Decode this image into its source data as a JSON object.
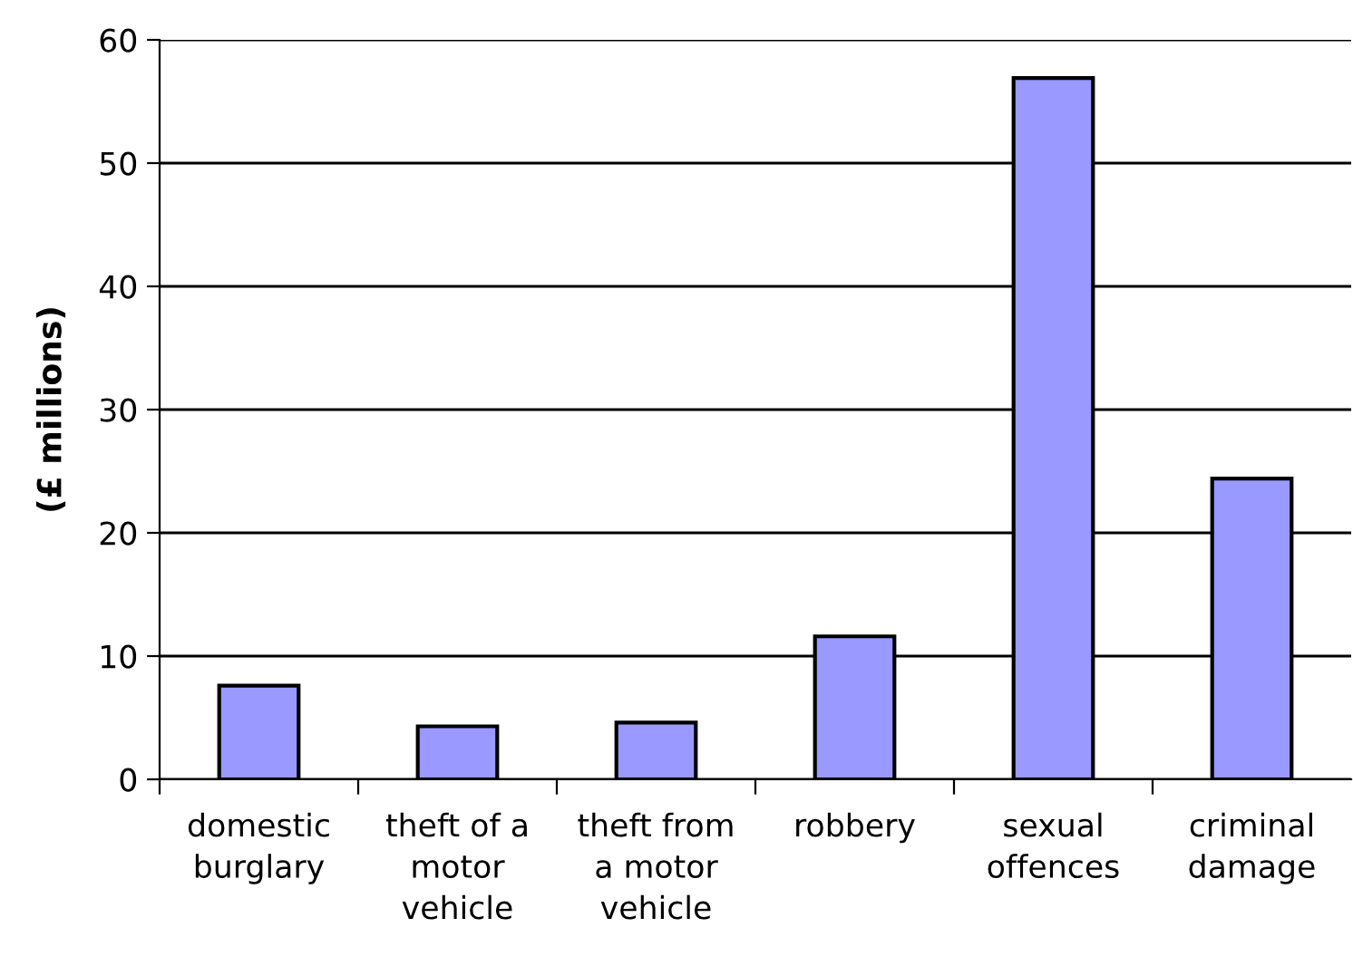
{
  "chart_data": {
    "type": "bar",
    "ylabel": "(£ millions)",
    "categories": [
      "domestic\nburglary",
      "theft of a\nmotor\nvehicle",
      "theft from\na motor\nvehicle",
      "robbery",
      "sexual\noffences",
      "criminal\ndamage"
    ],
    "values": [
      7.6,
      4.3,
      4.6,
      11.6,
      56.9,
      24.4
    ],
    "color": "#9999ff",
    "ylim": [
      0,
      60
    ],
    "yticks": [
      0,
      10,
      20,
      30,
      40,
      50,
      60
    ],
    "grid": "y"
  }
}
